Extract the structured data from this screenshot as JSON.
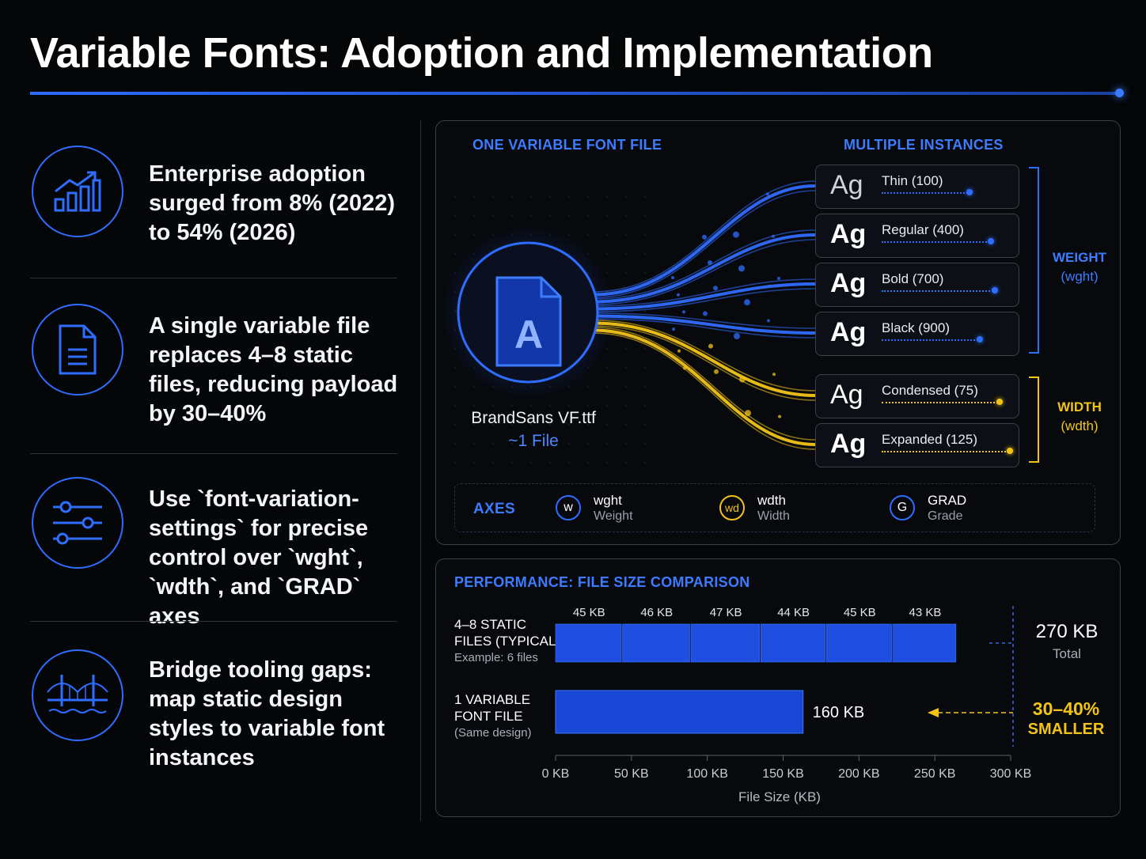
{
  "title": "Variable Fonts: Adoption and Implementation",
  "points": [
    {
      "icon": "growth-chart-icon",
      "text": "Enterprise adoption surged from 8% (2022) to 54% (2026)"
    },
    {
      "icon": "document-icon",
      "text": "A single variable file replaces 4–8 static files, reducing payload by 30–40%"
    },
    {
      "icon": "sliders-icon",
      "text": "Use `font-variation-settings` for precise control over `wght`, `wdth`, and `GRAD` axes"
    },
    {
      "icon": "bridge-icon",
      "text": "Bridge tooling gaps: map static design styles to variable font instances"
    }
  ],
  "diagram": {
    "left_header": "ONE VARIABLE FONT FILE",
    "right_header": "MULTIPLE INSTANCES",
    "file_name": "BrandSans VF.ttf",
    "file_count": "~1 File",
    "file_glyph": "A",
    "sample_glyph": "Ag",
    "instances": [
      {
        "label": "Thin (100)",
        "axis": "weight",
        "level": 0.68
      },
      {
        "label": "Regular (400)",
        "axis": "weight",
        "level": 0.85
      },
      {
        "label": "Bold (700)",
        "axis": "weight",
        "level": 0.88
      },
      {
        "label": "Black (900)",
        "axis": "weight",
        "level": 0.76
      },
      {
        "label": "Condensed (75)",
        "axis": "width",
        "level": 0.92
      },
      {
        "label": "Expanded (125)",
        "axis": "width",
        "level": 1.0
      }
    ],
    "weight_group": {
      "name": "WEIGHT",
      "tag": "(wght)"
    },
    "width_group": {
      "name": "WIDTH",
      "tag": "(wdth)"
    },
    "axes_title": "AXES",
    "axes": [
      {
        "badge": "w",
        "name": "wght",
        "desc": "Weight"
      },
      {
        "badge": "wd",
        "name": "wdth",
        "desc": "Width"
      },
      {
        "badge": "G",
        "name": "GRAD",
        "desc": "Grade"
      }
    ],
    "colors": {
      "blue": "#2f6dff",
      "yellow": "#f2c418"
    }
  },
  "chart_data": {
    "type": "bar",
    "title": "PERFORMANCE: FILE SIZE COMPARISON",
    "xlabel": "File Size (KB)",
    "xlim": [
      0,
      300
    ],
    "xticks": [
      "0 KB",
      "50 KB",
      "100 KB",
      "150 KB",
      "200 KB",
      "250 KB",
      "300 KB"
    ],
    "rows": [
      {
        "label_line1": "4–8 STATIC",
        "label_line2": "FILES (TYPICAL)",
        "note": "Example: 6 files",
        "segments": [
          45,
          46,
          47,
          44,
          45,
          43
        ],
        "segment_labels": [
          "45 KB",
          "46 KB",
          "47 KB",
          "44 KB",
          "45 KB",
          "43 KB"
        ],
        "total_label": "270 KB",
        "total_caption": "Total"
      },
      {
        "label_line1": "1 VARIABLE",
        "label_line2": "FONT FILE",
        "note": "(Same design)",
        "value": 160,
        "value_label": "160 KB"
      }
    ],
    "savings_line1": "30–40%",
    "savings_line2": "SMALLER"
  }
}
